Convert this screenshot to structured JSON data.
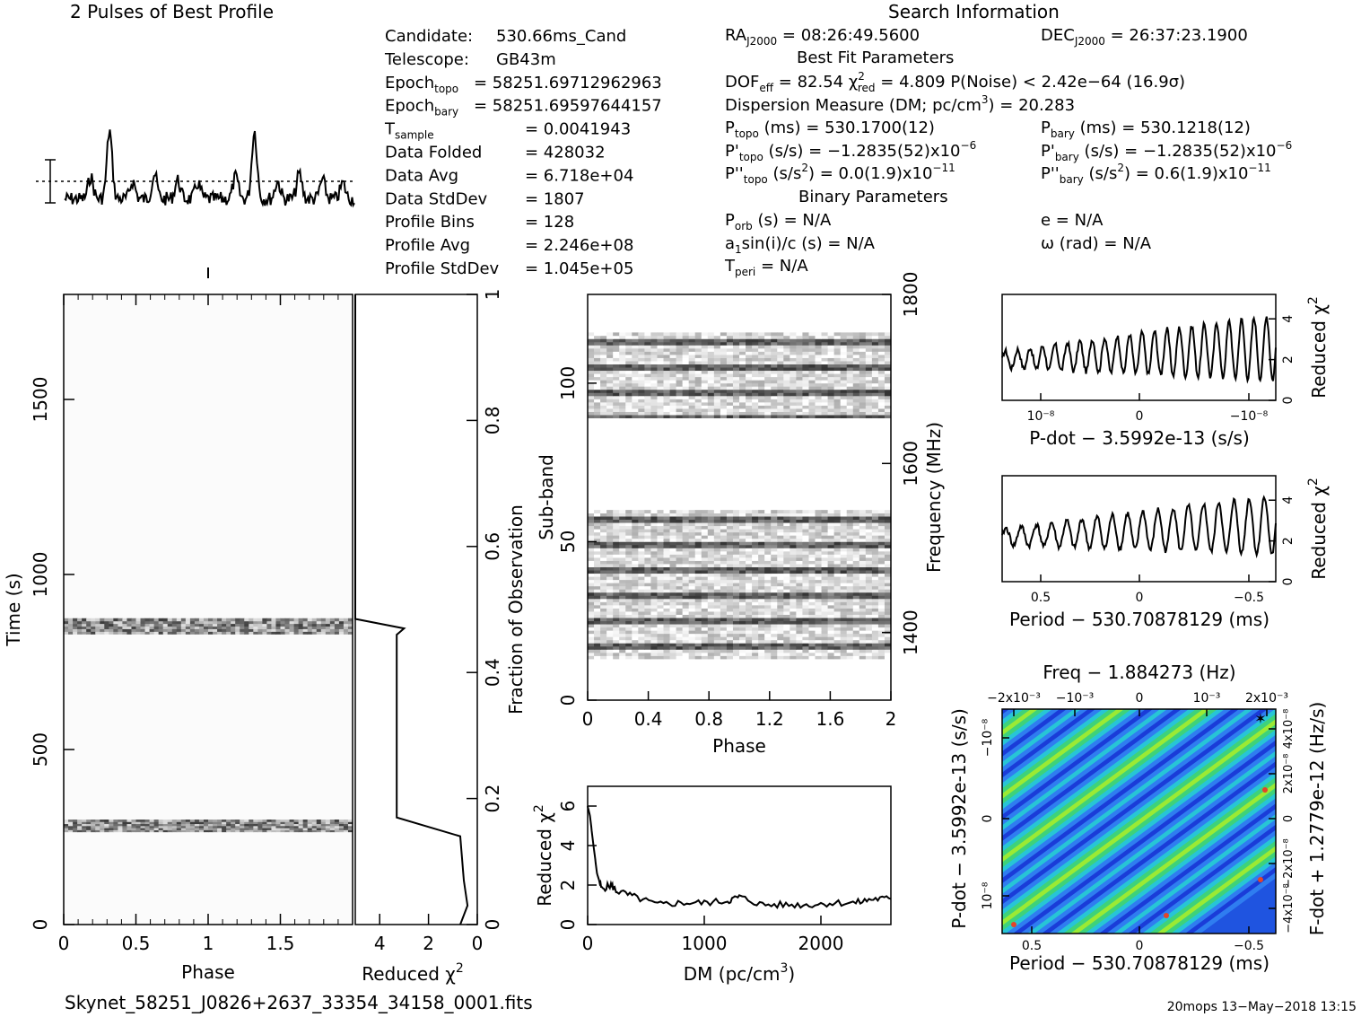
{
  "header": {
    "profile_title": "2 Pulses of Best Profile",
    "search_title": "Search Information"
  },
  "candidate_info": [
    {
      "label": "Candidate:",
      "value": "530.66ms_Cand"
    },
    {
      "label": "Telescope:",
      "value": "GB43m"
    },
    {
      "label": "Epoch_topo",
      "value": "= 58251.69712962963"
    },
    {
      "label": "Epoch_bary",
      "value": "= 58251.69597644157"
    },
    {
      "label": "T_sample",
      "value": "=  0.0041943"
    },
    {
      "label": "Data Folded",
      "value": "=  428032"
    },
    {
      "label": "Data Avg",
      "value": "=  6.718e+04"
    },
    {
      "label": "Data StdDev",
      "value": "=  1807"
    },
    {
      "label": "Profile Bins",
      "value": "=  128"
    },
    {
      "label": "Profile Avg",
      "value": "=  2.246e+08"
    },
    {
      "label": "Profile StdDev",
      "value": "=  1.045e+05"
    }
  ],
  "search_info": {
    "ra": "RA_J2000 = 08:26:49.5600",
    "dec": "DEC_J2000 = 26:37:23.1900",
    "best_fit_title": "Best Fit Parameters",
    "dof_line": "DOF_eff = 82.54  χ²_red = 4.809  P(Noise) < 2.42e−64  (16.9σ)",
    "dm_line": "Dispersion Measure (DM; pc/cm³) = 20.283",
    "p_topo": "P_topo (ms) =  530.1700(12)",
    "p_bary": "P_bary (ms) =  530.1218(12)",
    "pd_topo": "P'_topo (s/s) = −1.2835(52)x10⁻⁶",
    "pd_bary": "P'_bary (s/s) = −1.2835(52)x10⁻⁶",
    "pdd_topo": "P''_topo (s/s²) = 0.0(1.9)x10⁻¹¹",
    "pdd_bary": "P''_bary (s/s²) =  0.6(1.9)x10⁻¹¹",
    "binary_title": "Binary Parameters",
    "p_orb": "P_orb (s) = N/A",
    "ecc": "e = N/A",
    "a1sini": "a₁sin(i)/c (s) = N/A",
    "omega": "ω (rad) = N/A",
    "t_peri": "T_peri = N/A"
  },
  "footer": {
    "filename": "Skynet_58251_J0826+2637_33354_34158_0001.fits",
    "stamp": "20mops 13−May−2018 13:15"
  },
  "chart_data": [
    {
      "id": "profile",
      "type": "line",
      "title": "2 Pulses of Best Profile",
      "x_range": [
        0,
        2
      ],
      "description_of_peaks_phase": [
        0.31,
        0.62,
        1.19,
        1.31,
        1.62
      ],
      "peak_relative_heights": [
        1.0,
        0.55,
        0.6,
        1.0,
        0.55
      ]
    },
    {
      "id": "time_phase",
      "type": "heatmap",
      "xlabel": "Phase",
      "ylabel": "Time (s)",
      "xlim": [
        0,
        2
      ],
      "ylim": [
        0,
        1800
      ],
      "x_ticks": [
        "0",
        "0.5",
        "1",
        "1.5"
      ],
      "y_ticks": [
        "0",
        "500",
        "1000",
        "1500"
      ],
      "y_tick_values": [
        0,
        500,
        1000,
        1500
      ],
      "active_bands_time_s": [
        [
          265,
          300
        ],
        [
          830,
          875
        ]
      ]
    },
    {
      "id": "reduced_chi2_time",
      "type": "line",
      "xlabel": "Reduced χ²",
      "ylabel": "Fraction of Observation",
      "x_ticks": [
        "4",
        "2",
        "0"
      ],
      "x_tick_values": [
        4,
        2,
        0
      ],
      "y_ticks": [
        "0",
        "0.2",
        "0.4",
        "0.6",
        "0.8",
        "1"
      ],
      "y_tick_values": [
        0,
        0.2,
        0.4,
        0.6,
        0.8,
        1
      ],
      "xlim": [
        5,
        0
      ],
      "ylim": [
        0,
        1
      ],
      "points": [
        [
          0.7,
          0
        ],
        [
          0.4,
          0.03
        ],
        [
          0.55,
          0.07
        ],
        [
          0.7,
          0.14
        ],
        [
          3.3,
          0.17
        ],
        [
          3.3,
          0.46
        ],
        [
          3.0,
          0.47
        ],
        [
          5.0,
          0.485
        ],
        [
          5.0,
          0.6
        ],
        [
          5.0,
          0.8
        ],
        [
          5.0,
          1.0
        ]
      ]
    },
    {
      "id": "subband_phase",
      "type": "heatmap",
      "xlabel": "Phase",
      "ylabel": "Sub-band",
      "y2label": "Frequency (MHz)",
      "xlim": [
        0,
        2
      ],
      "ylim": [
        0,
        128
      ],
      "x_ticks": [
        "0",
        "0.4",
        "0.8",
        "1.2",
        "1.6",
        "2"
      ],
      "x_tick_values": [
        0,
        0.4,
        0.8,
        1.2,
        1.6,
        2
      ],
      "y_ticks": [
        "0",
        "50",
        "100"
      ],
      "y_tick_values": [
        0,
        50,
        100
      ],
      "freq_ticks": [
        "1400",
        "1600",
        "1800"
      ],
      "freq_tick_values": [
        1400,
        1600,
        1800
      ],
      "freq_range": [
        1320,
        1800
      ],
      "active_subbands": [
        [
          13,
          60
        ],
        [
          89,
          116
        ]
      ]
    },
    {
      "id": "dm_curve",
      "type": "line",
      "xlabel": "DM (pc/cm³)",
      "ylabel": "Reduced χ²",
      "xlim": [
        0,
        2600
      ],
      "ylim": [
        0,
        7
      ],
      "x_ticks": [
        "0",
        "1000",
        "2000"
      ],
      "x_tick_values": [
        0,
        1000,
        2000
      ],
      "y_ticks": [
        "0",
        "2",
        "4",
        "6"
      ],
      "y_tick_values": [
        0,
        2,
        4,
        6
      ],
      "points": [
        [
          0,
          6.0
        ],
        [
          20,
          5.5
        ],
        [
          50,
          4.0
        ],
        [
          80,
          2.6
        ],
        [
          120,
          1.8
        ],
        [
          200,
          2.0
        ],
        [
          250,
          1.7
        ],
        [
          400,
          1.4
        ],
        [
          600,
          1.0
        ],
        [
          800,
          1.1
        ],
        [
          1000,
          1.1
        ],
        [
          1200,
          1.2
        ],
        [
          1300,
          1.4
        ],
        [
          1500,
          1.0
        ],
        [
          1700,
          1.0
        ],
        [
          1900,
          1.0
        ],
        [
          2100,
          1.1
        ],
        [
          2300,
          1.1
        ],
        [
          2450,
          1.3
        ],
        [
          2600,
          1.3
        ]
      ]
    },
    {
      "id": "pdot_chi2",
      "type": "line",
      "xlabel": "P-dot − 3.5992e-13 (s/s)",
      "ylabel": "Reduced χ²",
      "x_ticks": [
        "10⁻⁸",
        "0",
        "−10⁻⁸"
      ],
      "y_ticks": [
        "0",
        "2",
        "4"
      ],
      "y_tick_values": [
        0,
        2,
        4
      ],
      "ylim": [
        0,
        5.2
      ],
      "oscillations": 22,
      "base_level_start": 2.0,
      "amplitude_end": 2.8
    },
    {
      "id": "period_chi2",
      "type": "line",
      "xlabel": "Period − 530.70878129 (ms)",
      "ylabel": "Reduced χ²",
      "x_ticks": [
        "0.5",
        "0",
        "−0.5"
      ],
      "y_ticks": [
        "0",
        "2",
        "4"
      ],
      "y_tick_values": [
        0,
        2,
        4
      ],
      "ylim": [
        0,
        5.2
      ],
      "oscillations": 18,
      "base_level_start": 2.2,
      "amplitude_end": 2.5
    },
    {
      "id": "p_pdot_plane",
      "type": "heatmap",
      "title": "Freq − 1.884273 (Hz)",
      "xlabel": "Period − 530.70878129 (ms)",
      "ylabel": "P-dot − 3.5992e-13 (s/s)",
      "y2label": "F-dot + 1.2779e-12 (Hz/s)",
      "x_ticks": [
        "0.5",
        "0",
        "−0.5"
      ],
      "top_ticks": [
        "−2x10⁻³",
        "−10⁻³",
        "0",
        "10⁻³",
        "2x10⁻³"
      ],
      "left_ticks": [
        "−10⁻⁸",
        "0",
        "10⁻⁸"
      ],
      "right_ticks": [
        "4x10⁻⁸",
        "2x10⁻⁸",
        "0",
        "−2x10⁻⁸",
        "−4x10⁻⁸"
      ],
      "colormap": [
        "#1a3cd8",
        "#2f7df0",
        "#27c5d6",
        "#3ed27a",
        "#9bea34",
        "#e8d22a",
        "#e2442a"
      ]
    }
  ]
}
